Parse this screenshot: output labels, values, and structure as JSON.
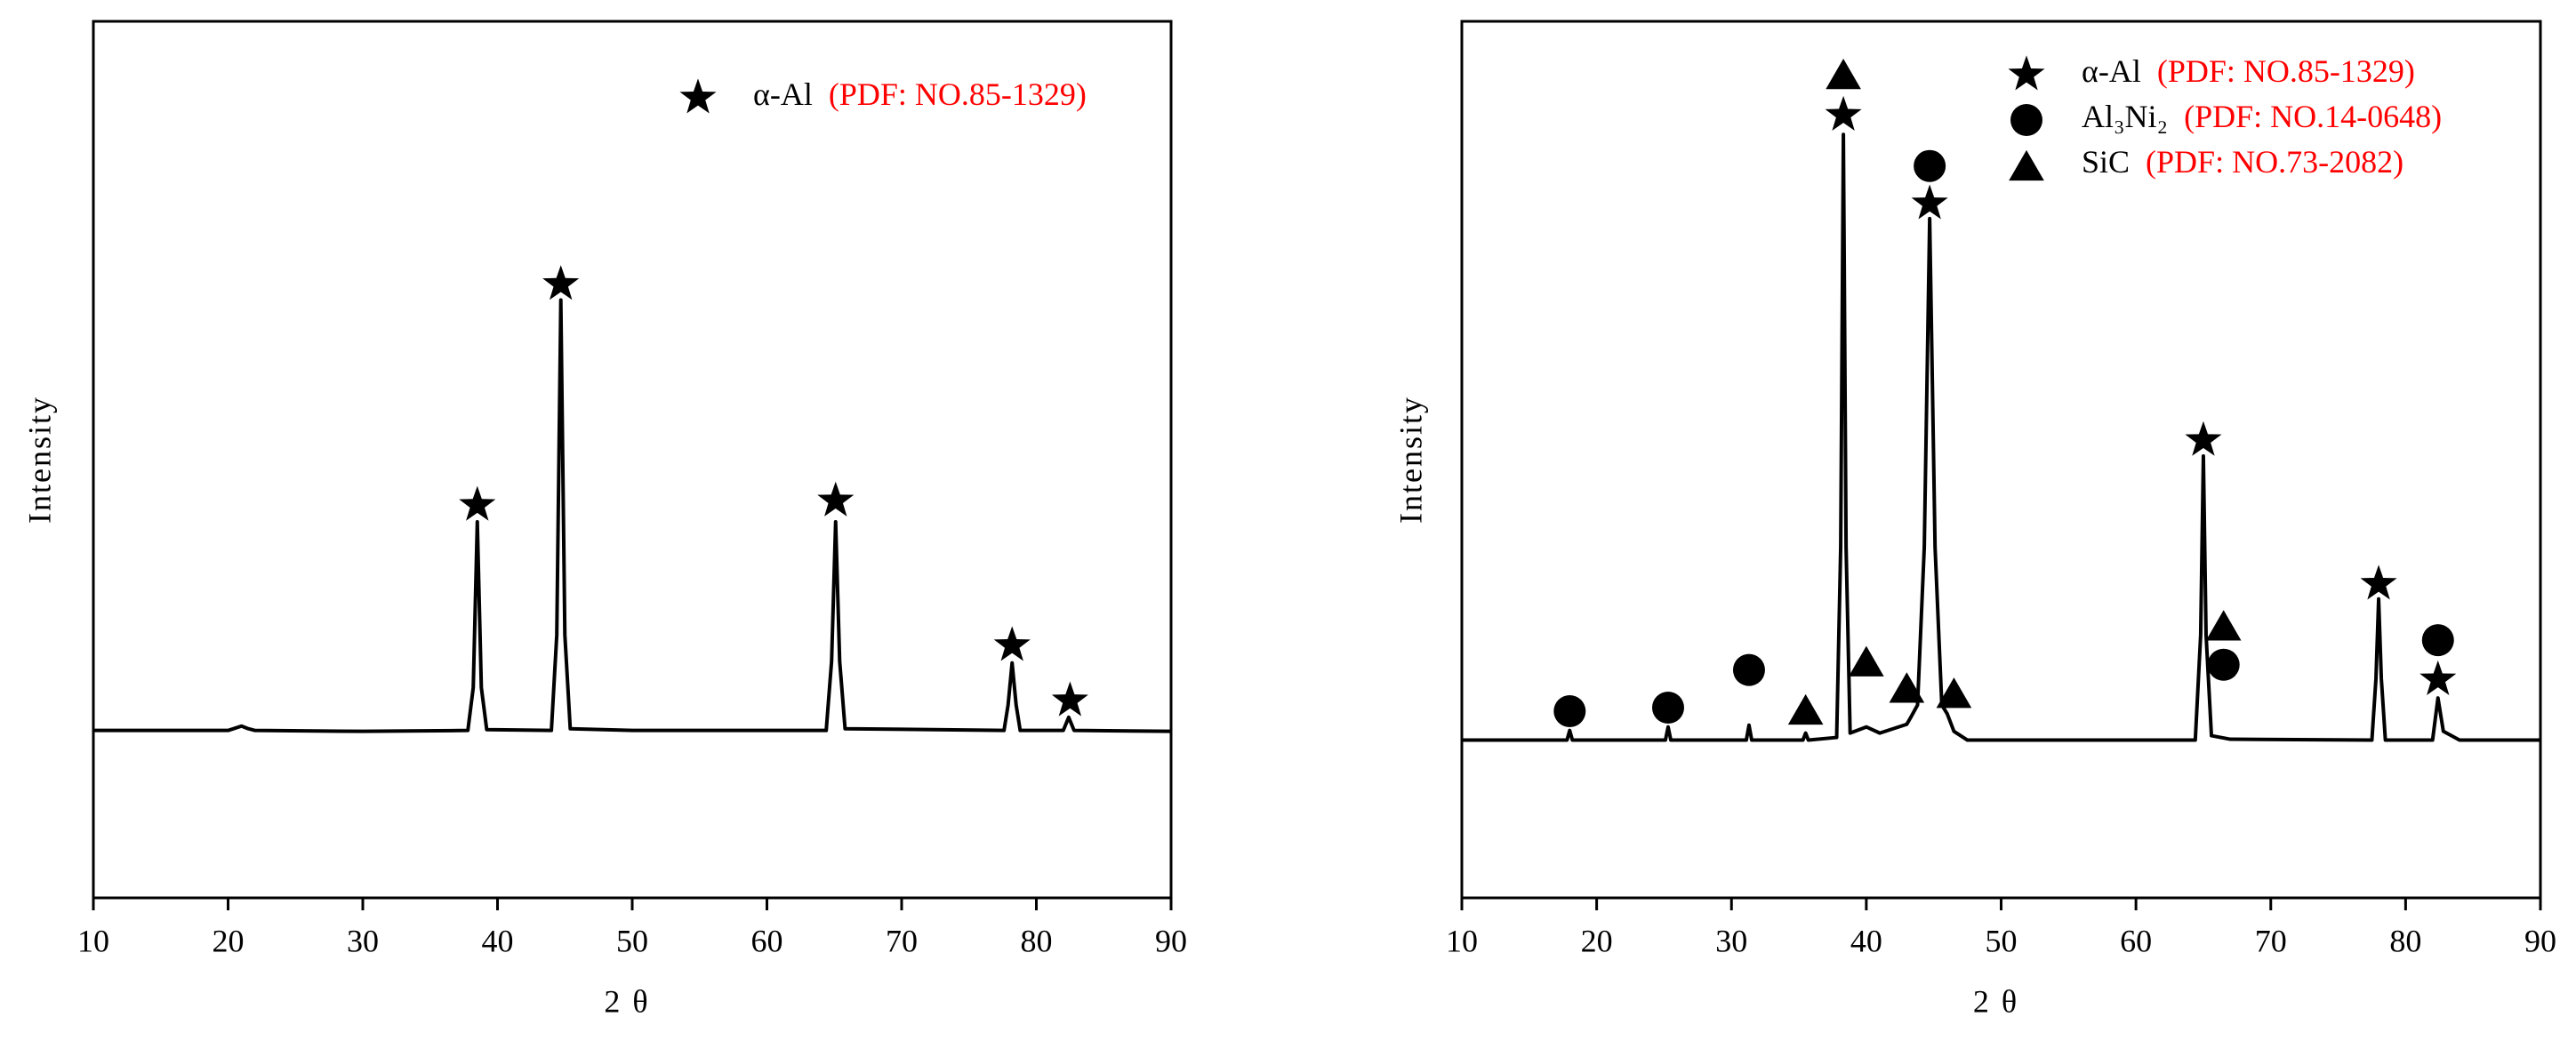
{
  "chart_data": [
    {
      "type": "line",
      "x_label": "2θ",
      "y_label": "Intensity",
      "xlim": [
        10,
        90
      ],
      "ylim": [
        0,
        100
      ],
      "xticks": [
        10,
        20,
        30,
        40,
        50,
        60,
        70,
        80,
        90
      ],
      "color": "#000000",
      "legend_loc": "upper right",
      "legend": [
        {
          "symbol": "star",
          "name": "α-Al",
          "source": "(PDF: NO.85-1329)"
        }
      ],
      "x": [
        10,
        20,
        21,
        21.5,
        22,
        30,
        37.8,
        38.2,
        38.5,
        38.8,
        39.2,
        44.0,
        44.4,
        44.7,
        45.0,
        45.4,
        50,
        64.4,
        64.8,
        65.1,
        65.4,
        65.8,
        77.6,
        77.9,
        78.2,
        78.5,
        78.8,
        82.0,
        82.4,
        82.8,
        90
      ],
      "values": [
        19.1,
        19.1,
        19.6,
        19.3,
        19.1,
        19.0,
        19.1,
        24,
        42.9,
        24,
        19.2,
        19.1,
        30,
        68.2,
        30,
        19.3,
        19.1,
        19.1,
        27,
        42.9,
        27,
        19.3,
        19.1,
        22,
        26.8,
        22,
        19.1,
        19.1,
        20.6,
        19.1,
        19.0
      ],
      "markers": [
        {
          "symbol": "star",
          "x": 38.5,
          "y": 44.8
        },
        {
          "symbol": "star",
          "x": 44.7,
          "y": 70.0
        },
        {
          "symbol": "star",
          "x": 65.1,
          "y": 45.3
        },
        {
          "symbol": "star",
          "x": 78.2,
          "y": 28.8
        },
        {
          "symbol": "star",
          "x": 82.5,
          "y": 22.5
        }
      ]
    },
    {
      "type": "line",
      "x_label": "2θ",
      "y_label": "Intensity",
      "xlim": [
        10,
        90
      ],
      "ylim": [
        0,
        100
      ],
      "xticks": [
        10,
        20,
        30,
        40,
        50,
        60,
        70,
        80,
        90
      ],
      "color": "#000000",
      "legend_loc": "upper right",
      "legend": [
        {
          "symbol": "star",
          "name": "α-Al",
          "source": "(PDF: NO.85-1329)"
        },
        {
          "symbol": "circle",
          "name": "Al₃Ni₂",
          "source": "(PDF: NO.14-0648)"
        },
        {
          "symbol": "triangle",
          "name": "SiC",
          "source": "(PDF: NO.73-2082)"
        }
      ],
      "x": [
        10,
        17.8,
        18.0,
        18.2,
        25.1,
        25.3,
        25.5,
        31.1,
        31.3,
        31.5,
        35.3,
        35.5,
        35.7,
        37.8,
        38.1,
        38.3,
        38.5,
        38.8,
        40.0,
        41.0,
        43.0,
        43.3,
        43.8,
        44.3,
        44.7,
        45.1,
        45.6,
        46.0,
        46.5,
        47.5,
        64.4,
        64.8,
        65.0,
        65.2,
        65.6,
        67.0,
        77.5,
        77.8,
        78.0,
        78.2,
        78.5,
        82.0,
        82.4,
        82.8,
        84,
        90
      ],
      "values": [
        18.0,
        18.0,
        19.1,
        18.0,
        18.0,
        19.5,
        18.0,
        18.0,
        19.7,
        18.0,
        18.0,
        18.8,
        18.0,
        18.3,
        40,
        87.1,
        40,
        18.8,
        19.5,
        18.8,
        19.8,
        20.6,
        22,
        40,
        77.5,
        40,
        22,
        21.0,
        19,
        18.0,
        18.0,
        30,
        50.4,
        30,
        18.5,
        18.1,
        18.0,
        25,
        34.1,
        25,
        18.0,
        18.0,
        22.8,
        19.0,
        18.0,
        18.0
      ],
      "markers": [
        {
          "symbol": "triangle",
          "x": 38.3,
          "y": 94.0
        },
        {
          "symbol": "star",
          "x": 38.3,
          "y": 89.3
        },
        {
          "symbol": "circle",
          "x": 44.7,
          "y": 83.5
        },
        {
          "symbol": "star",
          "x": 44.7,
          "y": 79.2
        },
        {
          "symbol": "star",
          "x": 65.0,
          "y": 52.2
        },
        {
          "symbol": "triangle",
          "x": 66.5,
          "y": 31.1
        },
        {
          "symbol": "circle",
          "x": 66.5,
          "y": 26.6
        },
        {
          "symbol": "star",
          "x": 78.0,
          "y": 35.8
        },
        {
          "symbol": "circle",
          "x": 82.4,
          "y": 29.4
        },
        {
          "symbol": "star",
          "x": 82.4,
          "y": 24.9
        },
        {
          "symbol": "circle",
          "x": 18.0,
          "y": 21.3
        },
        {
          "symbol": "circle",
          "x": 25.3,
          "y": 21.7
        },
        {
          "symbol": "circle",
          "x": 31.3,
          "y": 26.0
        },
        {
          "symbol": "triangle",
          "x": 35.5,
          "y": 21.5
        },
        {
          "symbol": "triangle",
          "x": 40.0,
          "y": 27.0
        },
        {
          "symbol": "triangle",
          "x": 43.0,
          "y": 24.0
        },
        {
          "symbol": "triangle",
          "x": 46.5,
          "y": 23.4
        }
      ]
    }
  ]
}
